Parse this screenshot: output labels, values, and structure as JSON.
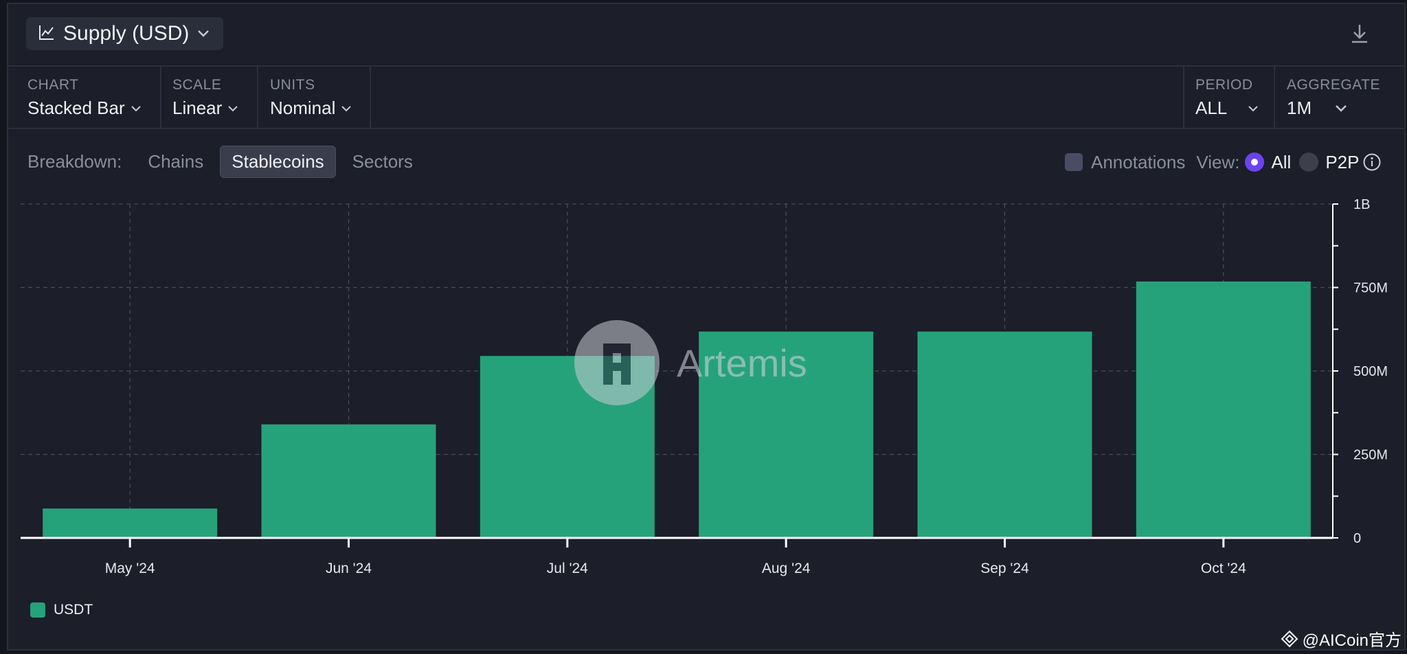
{
  "header": {
    "title": "Supply (USD)"
  },
  "controls": {
    "chart": {
      "label": "CHART",
      "value": "Stacked Bar"
    },
    "scale": {
      "label": "SCALE",
      "value": "Linear"
    },
    "units": {
      "label": "UNITS",
      "value": "Nominal"
    },
    "period": {
      "label": "PERIOD",
      "value": "ALL"
    },
    "aggregate": {
      "label": "AGGREGATE",
      "value": "1M"
    }
  },
  "breakdown": {
    "label": "Breakdown:",
    "options": [
      "Chains",
      "Stablecoins",
      "Sectors"
    ],
    "active": "Stablecoins"
  },
  "view": {
    "annotations_label": "Annotations",
    "view_label": "View:",
    "option_all": "All",
    "option_p2p": "P2P",
    "selected": "All"
  },
  "watermark": "Artemis",
  "credit": "@AICoin官方",
  "colors": {
    "bar": "#26a27b",
    "accent": "#6b43f0"
  },
  "chart_data": {
    "type": "bar",
    "stacked": true,
    "categories": [
      "May '24",
      "Jun '24",
      "Jul '24",
      "Aug '24",
      "Sep '24",
      "Oct '24"
    ],
    "series": [
      {
        "name": "USDT",
        "values": [
          88000000,
          340000000,
          545000000,
          618000000,
          618000000,
          768000000
        ]
      }
    ],
    "y_ticks": [
      {
        "value": 0,
        "label": "0"
      },
      {
        "value": 250000000,
        "label": "250M"
      },
      {
        "value": 500000000,
        "label": "500M"
      },
      {
        "value": 750000000,
        "label": "750M"
      },
      {
        "value": 1000000000,
        "label": "1B"
      }
    ],
    "ylim": [
      0,
      1000000000
    ],
    "grid": true,
    "legend_position": "bottom-left",
    "y_axis_side": "right"
  }
}
